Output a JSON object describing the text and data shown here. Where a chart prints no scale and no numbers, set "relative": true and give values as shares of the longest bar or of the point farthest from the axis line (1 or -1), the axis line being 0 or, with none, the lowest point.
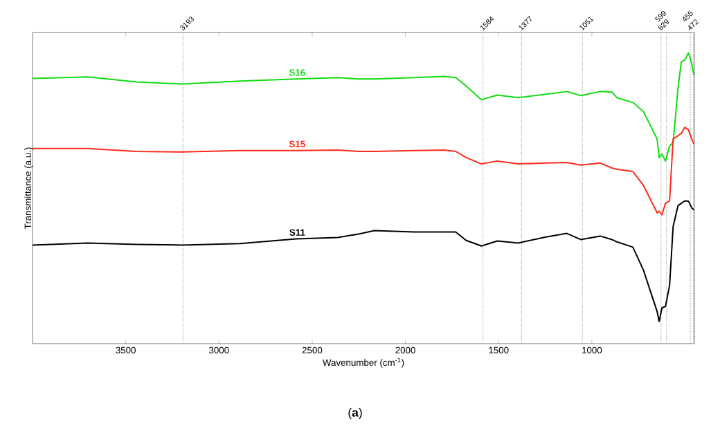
{
  "chart_data": {
    "type": "line",
    "relative": true,
    "xlabel": "Wavenumber (cm$^{-1}$)",
    "ylabel": "Transmittance (a.u.)",
    "xlim": [
      4000,
      450
    ],
    "xticks": [
      3500,
      3000,
      2500,
      2000,
      1500,
      1000
    ],
    "annotations": [
      "(**a**)"
    ],
    "ref_lines": [
      {
        "axis": "x",
        "value": 3193,
        "label": "3193",
        "color": "#999999",
        "line_style": "dotted"
      },
      {
        "axis": "x",
        "value": 1584,
        "label": "1584",
        "color": "#999999",
        "line_style": "dotted"
      },
      {
        "axis": "x",
        "value": 1377,
        "label": "1377",
        "color": "#999999",
        "line_style": "dotted"
      },
      {
        "axis": "x",
        "value": 1051,
        "label": "1051",
        "color": "#999999",
        "line_style": "dotted"
      },
      {
        "axis": "x",
        "value": 629,
        "label": "629",
        "color": "#999999",
        "line_style": "dotted"
      },
      {
        "axis": "x",
        "value": 599,
        "label": "599",
        "color": "#999999",
        "line_style": "dotted"
      },
      {
        "axis": "x",
        "value": 472,
        "label": "472",
        "color": "#999999",
        "line_style": "dotted"
      },
      {
        "axis": "x",
        "value": 455,
        "label": "455",
        "color": "#999999",
        "line_style": "dotted"
      }
    ],
    "x": [
      4000,
      3704,
      3443,
      3201,
      2885,
      2587,
      2363,
      2251,
      2166,
      1953,
      1793,
      1730,
      1674,
      1592,
      1507,
      1395,
      1246,
      1134,
      1060,
      955,
      892,
      866,
      780,
      724,
      650,
      639,
      624,
      605,
      583,
      564,
      538,
      520,
      501,
      482,
      464,
      453
    ],
    "series": [
      {
        "name": "S16",
        "color": "#11dd11",
        "values": [
          0.912,
          0.917,
          0.9,
          0.893,
          0.903,
          0.91,
          0.915,
          0.91,
          0.91,
          0.915,
          0.919,
          0.915,
          0.886,
          0.839,
          0.855,
          0.846,
          0.858,
          0.867,
          0.853,
          0.867,
          0.865,
          0.846,
          0.829,
          0.799,
          0.704,
          0.64,
          0.652,
          0.628,
          0.68,
          0.692,
          0.877,
          0.969,
          0.976,
          1.0,
          0.964,
          0.924
        ]
      },
      {
        "name": "S15",
        "color": "#ff2a1a",
        "values": [
          0.671,
          0.671,
          0.661,
          0.659,
          0.664,
          0.664,
          0.666,
          0.661,
          0.661,
          0.664,
          0.666,
          0.661,
          0.64,
          0.618,
          0.628,
          0.618,
          0.621,
          0.623,
          0.614,
          0.621,
          0.604,
          0.6,
          0.592,
          0.545,
          0.45,
          0.455,
          0.443,
          0.483,
          0.491,
          0.704,
          0.715,
          0.723,
          0.744,
          0.735,
          0.704,
          0.687
        ]
      },
      {
        "name": "S11",
        "color": "#000000",
        "values": [
          0.339,
          0.346,
          0.341,
          0.339,
          0.344,
          0.36,
          0.365,
          0.377,
          0.389,
          0.384,
          0.384,
          0.384,
          0.355,
          0.336,
          0.353,
          0.346,
          0.367,
          0.379,
          0.358,
          0.37,
          0.358,
          0.35,
          0.332,
          0.254,
          0.111,
          0.076,
          0.123,
          0.128,
          0.2,
          0.403,
          0.474,
          0.483,
          0.491,
          0.49,
          0.467,
          0.46
        ]
      }
    ]
  }
}
